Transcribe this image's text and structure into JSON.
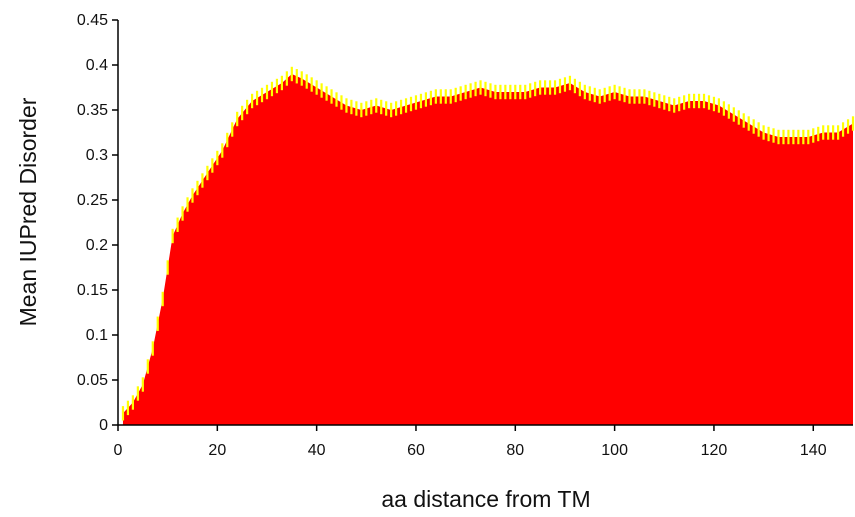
{
  "chart_data": {
    "type": "area",
    "title": "",
    "xlabel": "aa distance from TM",
    "ylabel": "Mean IUPred  Disorder",
    "xlim": [
      0,
      148
    ],
    "ylim": [
      0,
      0.45
    ],
    "x_ticks": [
      0,
      20,
      40,
      60,
      80,
      100,
      120,
      140
    ],
    "y_ticks": [
      "0",
      "0.05",
      "0.1",
      "0.15",
      "0.2",
      "0.25",
      "0.3",
      "0.35",
      "0.4",
      "0.45"
    ],
    "grid": false,
    "legend": "none",
    "colors": {
      "fill": "#ff0000",
      "error_bar": "#ffff00"
    },
    "x": [
      1,
      3,
      5,
      7,
      9,
      10,
      11,
      13,
      15,
      18,
      21,
      24,
      27,
      30,
      33,
      35,
      37,
      40,
      43,
      46,
      49,
      52,
      55,
      58,
      61,
      64,
      67,
      70,
      73,
      76,
      79,
      82,
      85,
      88,
      91,
      94,
      97,
      100,
      103,
      106,
      109,
      112,
      115,
      118,
      121,
      124,
      127,
      130,
      133,
      136,
      139,
      142,
      145,
      148
    ],
    "values": [
      0.013,
      0.025,
      0.045,
      0.085,
      0.14,
      0.175,
      0.21,
      0.235,
      0.255,
      0.28,
      0.305,
      0.34,
      0.36,
      0.37,
      0.38,
      0.39,
      0.385,
      0.375,
      0.365,
      0.355,
      0.35,
      0.355,
      0.35,
      0.355,
      0.36,
      0.365,
      0.365,
      0.37,
      0.375,
      0.37,
      0.37,
      0.37,
      0.375,
      0.375,
      0.38,
      0.37,
      0.365,
      0.37,
      0.365,
      0.365,
      0.36,
      0.355,
      0.36,
      0.36,
      0.355,
      0.345,
      0.335,
      0.325,
      0.32,
      0.32,
      0.32,
      0.325,
      0.325,
      0.335
    ],
    "error": 0.008
  }
}
